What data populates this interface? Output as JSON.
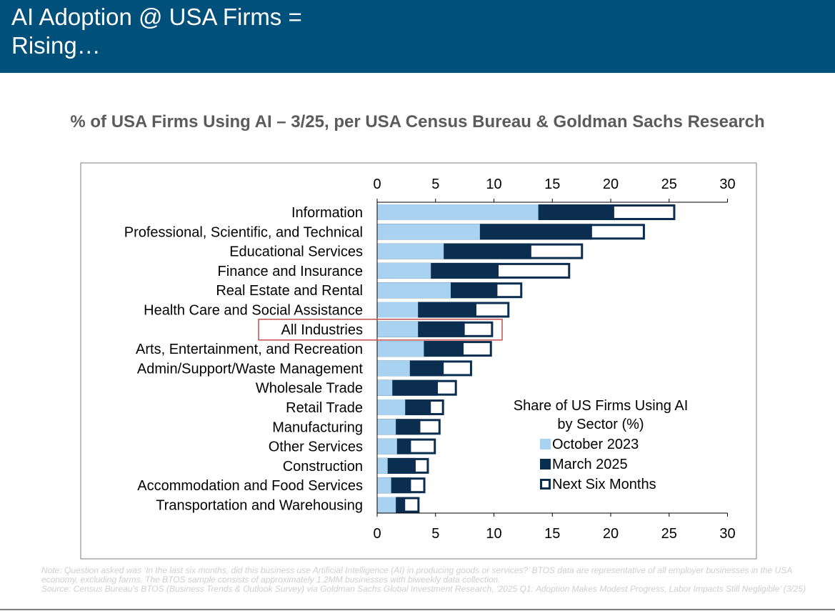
{
  "header": {
    "title": "AI Adoption @ USA Firms =\nRising…"
  },
  "chart_heading": "% of USA Firms Using AI – 3/25, per USA Census Bureau & Goldman Sachs Research",
  "chart_data": {
    "type": "bar",
    "orientation": "horizontal",
    "categories": [
      "Information",
      "Professional, Scientific, and Technical",
      "Educational Services",
      "Finance and Insurance",
      "Real Estate and Rental",
      "Health Care and Social Assistance",
      "All Industries",
      "Arts, Entertainment, and Recreation",
      "Admin/Support/Waste Management",
      "Wholesale Trade",
      "Retail Trade",
      "Manufacturing",
      "Other Services",
      "Construction",
      "Accommodation and Food Services",
      "Transportation and Warehousing"
    ],
    "series": [
      {
        "name": "October 2023",
        "values": [
          13.8,
          8.8,
          5.7,
          4.6,
          6.3,
          3.5,
          3.5,
          4.0,
          2.8,
          1.3,
          2.4,
          1.6,
          1.7,
          0.9,
          1.2,
          1.6
        ]
      },
      {
        "name": "March 2025",
        "values": [
          20.3,
          18.4,
          13.2,
          10.4,
          10.3,
          8.5,
          7.5,
          7.4,
          5.7,
          5.2,
          4.6,
          3.7,
          2.9,
          3.3,
          2.9,
          2.4
        ]
      },
      {
        "name": "Next Six Months",
        "values": [
          25.5,
          22.9,
          17.6,
          16.5,
          12.4,
          11.3,
          9.9,
          9.8,
          8.1,
          6.8,
          5.7,
          5.4,
          5.0,
          4.4,
          4.1,
          3.6
        ]
      }
    ],
    "xlim": [
      0,
      30
    ],
    "xticks": [
      "0",
      "5",
      "10",
      "15",
      "20",
      "25",
      "30"
    ],
    "xaxis_position": "top and bottom",
    "grid": false,
    "highlighted_category": "All Industries",
    "legend_title": "Share of US Firms Using AI\nby Sector (%)",
    "legend_position": "lower-right",
    "colors": {
      "October 2023": "#a9d2f0",
      "March 2025": "#0b2d50",
      "Next Six Months": "#ffffff",
      "highlight_box": "#c0504d"
    }
  },
  "footnotes": {
    "note": "Note: Question asked was ‘In the last six months, did this business use Artificial Intelligence (AI) in producing goods or services?’ BTOS data are representative of all employer businesses in the USA economy, excluding farms. The BTOS sample consists of approximately 1.2MM businesses with biweekly data collection.",
    "source": "Source: Census Bureau’s BTOS (Business Trends & Outlook Survey) via Goldman Sachs Global Investment Research, ‘2025 Q1: Adoption Makes Modest Progress, Labor Impacts Still Negligible’ (3/25)"
  }
}
